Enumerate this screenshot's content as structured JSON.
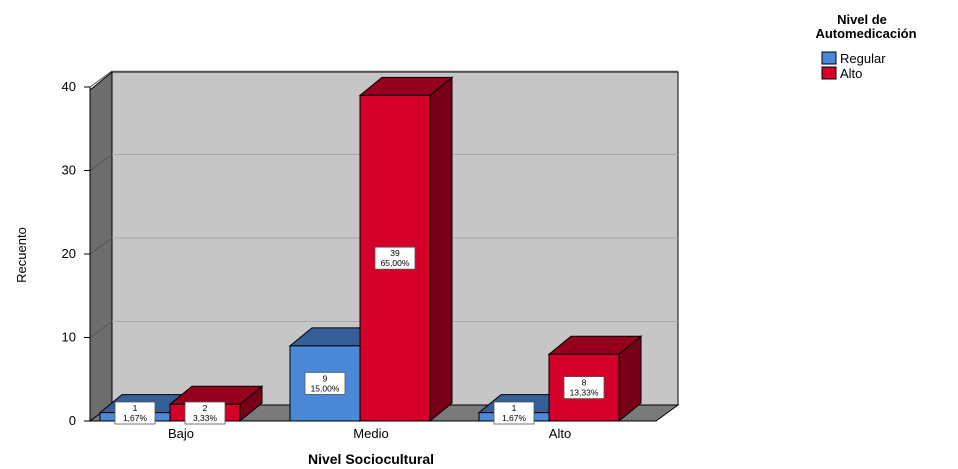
{
  "chart_data": {
    "type": "bar",
    "xlabel": "Nivel Sociocultural",
    "ylabel": "Recuento",
    "ylim": [
      0,
      40
    ],
    "yticks": [
      0,
      10,
      20,
      30,
      40
    ],
    "categories": [
      "Bajo",
      "Medio",
      "Alto"
    ],
    "legend_title": [
      "Nivel de",
      "Automedicación"
    ],
    "legend_position": "top-right",
    "style": "3d",
    "grid": true,
    "series": [
      {
        "name": "Regular",
        "color": "#4a88d8",
        "values": [
          1,
          9,
          1
        ],
        "count_labels": [
          "1",
          "9",
          "1"
        ],
        "percent_labels": [
          "1,67%",
          "15,00%",
          "1,67%"
        ]
      },
      {
        "name": "Alto",
        "color": "#d4002a",
        "values": [
          2,
          39,
          8
        ],
        "count_labels": [
          "2",
          "39",
          "8"
        ],
        "percent_labels": [
          "3,33%",
          "65,00%",
          "13,33%"
        ]
      }
    ]
  }
}
